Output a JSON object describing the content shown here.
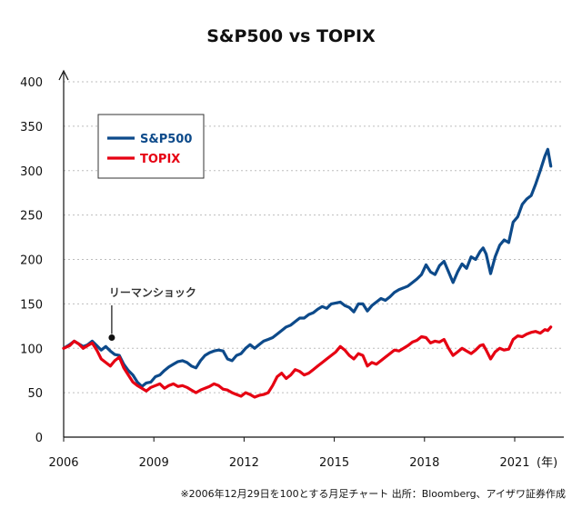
{
  "chart_data": {
    "type": "line",
    "title": "S&P500 vs TOPIX",
    "x_unit": "(年)",
    "x_range": [
      2006,
      2021.5
    ],
    "ylim": [
      0,
      400
    ],
    "yticks": [
      0,
      50,
      100,
      150,
      200,
      250,
      300,
      350,
      400
    ],
    "xticks": [
      2006,
      2009,
      2012,
      2015,
      2018,
      2021
    ],
    "xtick_labels": [
      "2006",
      "2009",
      "2012",
      "2015",
      "2018",
      "2021"
    ],
    "grid": "horizontal dotted",
    "legend_position": "top-left",
    "annotation": {
      "text": "リーマンショック",
      "x": 2007.6,
      "y": 112
    },
    "footnote": "※2006年12月29日を100とする月足チャート 出所：Bloomberg、アイザワ証券作成",
    "series": [
      {
        "name": "S&P500",
        "color": "#0d4a8a",
        "points": [
          [
            2006.0,
            100
          ],
          [
            2006.2,
            104
          ],
          [
            2006.35,
            108
          ],
          [
            2006.5,
            105
          ],
          [
            2006.65,
            102
          ],
          [
            2006.8,
            104
          ],
          [
            2006.95,
            108
          ],
          [
            2007.1,
            103
          ],
          [
            2007.25,
            98
          ],
          [
            2007.4,
            102
          ],
          [
            2007.55,
            97
          ],
          [
            2007.7,
            93
          ],
          [
            2007.85,
            92
          ],
          [
            2008.0,
            82
          ],
          [
            2008.15,
            75
          ],
          [
            2008.3,
            70
          ],
          [
            2008.45,
            62
          ],
          [
            2008.6,
            57
          ],
          [
            2008.75,
            61
          ],
          [
            2008.9,
            62
          ],
          [
            2009.05,
            68
          ],
          [
            2009.2,
            70
          ],
          [
            2009.35,
            75
          ],
          [
            2009.5,
            79
          ],
          [
            2009.65,
            82
          ],
          [
            2009.8,
            85
          ],
          [
            2009.95,
            86
          ],
          [
            2010.1,
            84
          ],
          [
            2010.25,
            80
          ],
          [
            2010.4,
            78
          ],
          [
            2010.55,
            86
          ],
          [
            2010.7,
            92
          ],
          [
            2010.85,
            95
          ],
          [
            2011.0,
            97
          ],
          [
            2011.15,
            98
          ],
          [
            2011.3,
            97
          ],
          [
            2011.45,
            88
          ],
          [
            2011.6,
            86
          ],
          [
            2011.75,
            92
          ],
          [
            2011.9,
            94
          ],
          [
            2012.05,
            100
          ],
          [
            2012.2,
            104
          ],
          [
            2012.35,
            100
          ],
          [
            2012.5,
            104
          ],
          [
            2012.65,
            108
          ],
          [
            2012.8,
            110
          ],
          [
            2012.95,
            112
          ],
          [
            2013.1,
            116
          ],
          [
            2013.25,
            120
          ],
          [
            2013.4,
            124
          ],
          [
            2013.55,
            126
          ],
          [
            2013.7,
            130
          ],
          [
            2013.85,
            134
          ],
          [
            2014.0,
            134
          ],
          [
            2014.15,
            138
          ],
          [
            2014.3,
            140
          ],
          [
            2014.45,
            144
          ],
          [
            2014.6,
            147
          ],
          [
            2014.75,
            145
          ],
          [
            2014.9,
            150
          ],
          [
            2015.05,
            151
          ],
          [
            2015.2,
            152
          ],
          [
            2015.35,
            148
          ],
          [
            2015.5,
            146
          ],
          [
            2015.65,
            141
          ],
          [
            2015.8,
            150
          ],
          [
            2015.95,
            150
          ],
          [
            2016.1,
            142
          ],
          [
            2016.25,
            148
          ],
          [
            2016.4,
            152
          ],
          [
            2016.55,
            156
          ],
          [
            2016.7,
            154
          ],
          [
            2016.85,
            158
          ],
          [
            2017.0,
            163
          ],
          [
            2017.15,
            166
          ],
          [
            2017.3,
            168
          ],
          [
            2017.45,
            170
          ],
          [
            2017.6,
            174
          ],
          [
            2017.75,
            178
          ],
          [
            2017.9,
            183
          ],
          [
            2018.05,
            194
          ],
          [
            2018.2,
            186
          ],
          [
            2018.35,
            183
          ],
          [
            2018.5,
            193
          ],
          [
            2018.65,
            198
          ],
          [
            2018.8,
            186
          ],
          [
            2018.95,
            174
          ],
          [
            2019.1,
            186
          ],
          [
            2019.25,
            195
          ],
          [
            2019.4,
            190
          ],
          [
            2019.55,
            203
          ],
          [
            2019.7,
            200
          ],
          [
            2019.85,
            209
          ],
          [
            2019.95,
            213
          ],
          [
            2020.05,
            206
          ],
          [
            2020.2,
            184
          ],
          [
            2020.35,
            203
          ],
          [
            2020.5,
            216
          ],
          [
            2020.65,
            222
          ],
          [
            2020.8,
            219
          ],
          [
            2020.95,
            242
          ],
          [
            2021.1,
            248
          ],
          [
            2021.25,
            262
          ],
          [
            2021.4,
            268
          ],
          [
            2021.55,
            272
          ],
          [
            2021.7,
            285
          ],
          [
            2021.85,
            300
          ],
          [
            2022.0,
            316
          ],
          [
            2022.1,
            324
          ],
          [
            2022.2,
            305
          ]
        ]
      },
      {
        "name": "TOPIX",
        "color": "#e60012",
        "points": [
          [
            2006.0,
            100
          ],
          [
            2006.2,
            103
          ],
          [
            2006.35,
            108
          ],
          [
            2006.5,
            105
          ],
          [
            2006.65,
            100
          ],
          [
            2006.8,
            103
          ],
          [
            2006.95,
            106
          ],
          [
            2007.1,
            98
          ],
          [
            2007.25,
            88
          ],
          [
            2007.4,
            84
          ],
          [
            2007.55,
            80
          ],
          [
            2007.7,
            86
          ],
          [
            2007.85,
            90
          ],
          [
            2008.0,
            78
          ],
          [
            2008.15,
            70
          ],
          [
            2008.3,
            62
          ],
          [
            2008.45,
            58
          ],
          [
            2008.6,
            55
          ],
          [
            2008.75,
            52
          ],
          [
            2008.9,
            56
          ],
          [
            2009.05,
            58
          ],
          [
            2009.2,
            60
          ],
          [
            2009.35,
            55
          ],
          [
            2009.5,
            58
          ],
          [
            2009.65,
            60
          ],
          [
            2009.8,
            57
          ],
          [
            2009.95,
            58
          ],
          [
            2010.1,
            56
          ],
          [
            2010.25,
            53
          ],
          [
            2010.4,
            50
          ],
          [
            2010.55,
            53
          ],
          [
            2010.7,
            55
          ],
          [
            2010.85,
            57
          ],
          [
            2011.0,
            60
          ],
          [
            2011.15,
            58
          ],
          [
            2011.3,
            54
          ],
          [
            2011.45,
            53
          ],
          [
            2011.6,
            50
          ],
          [
            2011.75,
            48
          ],
          [
            2011.9,
            46
          ],
          [
            2012.05,
            50
          ],
          [
            2012.2,
            48
          ],
          [
            2012.35,
            45
          ],
          [
            2012.5,
            47
          ],
          [
            2012.65,
            48
          ],
          [
            2012.8,
            50
          ],
          [
            2012.95,
            58
          ],
          [
            2013.1,
            68
          ],
          [
            2013.25,
            72
          ],
          [
            2013.4,
            66
          ],
          [
            2013.55,
            70
          ],
          [
            2013.7,
            76
          ],
          [
            2013.85,
            74
          ],
          [
            2014.0,
            70
          ],
          [
            2014.15,
            72
          ],
          [
            2014.3,
            76
          ],
          [
            2014.45,
            80
          ],
          [
            2014.6,
            84
          ],
          [
            2014.75,
            88
          ],
          [
            2014.9,
            92
          ],
          [
            2015.05,
            96
          ],
          [
            2015.2,
            102
          ],
          [
            2015.35,
            98
          ],
          [
            2015.5,
            92
          ],
          [
            2015.65,
            88
          ],
          [
            2015.8,
            94
          ],
          [
            2015.95,
            92
          ],
          [
            2016.1,
            80
          ],
          [
            2016.25,
            84
          ],
          [
            2016.4,
            82
          ],
          [
            2016.55,
            86
          ],
          [
            2016.7,
            90
          ],
          [
            2016.85,
            94
          ],
          [
            2017.0,
            98
          ],
          [
            2017.15,
            97
          ],
          [
            2017.3,
            100
          ],
          [
            2017.45,
            103
          ],
          [
            2017.6,
            107
          ],
          [
            2017.75,
            109
          ],
          [
            2017.9,
            113
          ],
          [
            2018.05,
            112
          ],
          [
            2018.2,
            106
          ],
          [
            2018.35,
            108
          ],
          [
            2018.5,
            107
          ],
          [
            2018.65,
            110
          ],
          [
            2018.8,
            100
          ],
          [
            2018.95,
            92
          ],
          [
            2019.1,
            96
          ],
          [
            2019.25,
            100
          ],
          [
            2019.4,
            97
          ],
          [
            2019.55,
            94
          ],
          [
            2019.7,
            98
          ],
          [
            2019.85,
            103
          ],
          [
            2019.95,
            104
          ],
          [
            2020.05,
            98
          ],
          [
            2020.2,
            88
          ],
          [
            2020.35,
            96
          ],
          [
            2020.5,
            100
          ],
          [
            2020.65,
            98
          ],
          [
            2020.8,
            99
          ],
          [
            2020.95,
            110
          ],
          [
            2021.1,
            114
          ],
          [
            2021.25,
            113
          ],
          [
            2021.4,
            116
          ],
          [
            2021.55,
            118
          ],
          [
            2021.7,
            119
          ],
          [
            2021.85,
            117
          ],
          [
            2022.0,
            121
          ],
          [
            2022.1,
            120
          ],
          [
            2022.2,
            124
          ]
        ]
      }
    ]
  }
}
